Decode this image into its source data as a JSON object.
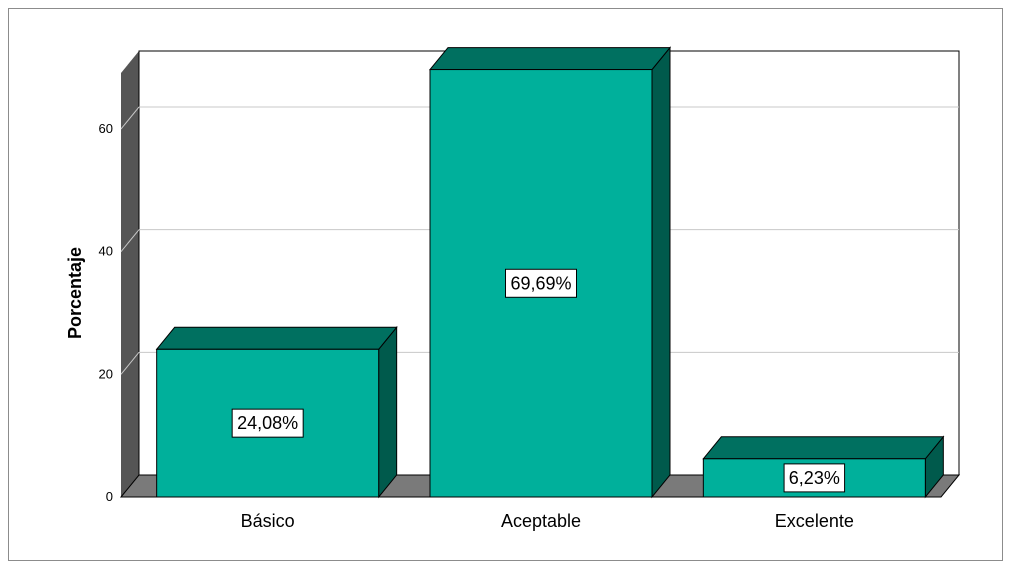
{
  "chart_data": {
    "type": "bar",
    "categories": [
      "Básico",
      "Aceptable",
      "Excelente"
    ],
    "values": [
      24.08,
      69.69,
      6.23
    ],
    "data_labels": [
      "24,08%",
      "69,69%",
      "6,23%"
    ],
    "title": "",
    "xlabel": "",
    "ylabel": "Porcentaje",
    "ylim": [
      0,
      70
    ],
    "yticks": [
      0,
      20,
      40,
      60
    ],
    "ytick_labels": [
      "0",
      "20",
      "40",
      "60"
    ],
    "grid": true,
    "style": "3d",
    "colors": {
      "bar_front": "#00b09b",
      "bar_top": "#007060",
      "bar_side": "#005a4c",
      "floor": "#7a7a7a",
      "wall": "#555555",
      "gridline": "#c8c8c8"
    }
  }
}
